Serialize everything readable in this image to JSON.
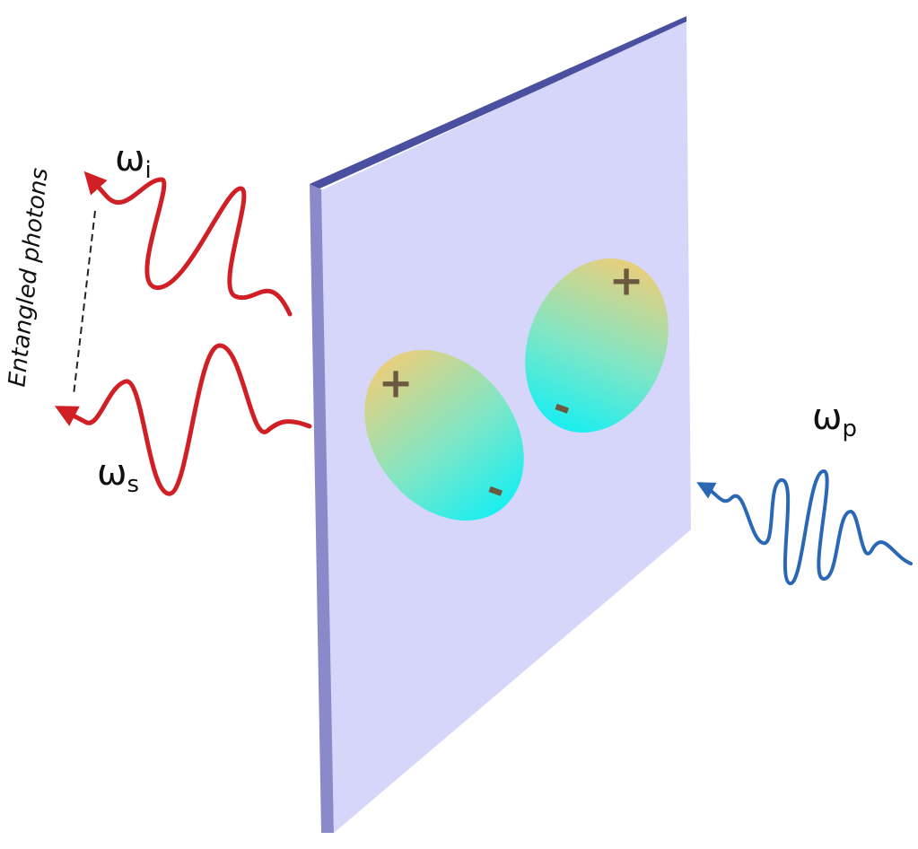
{
  "frequencies": {
    "idler": {
      "symbol": "ω",
      "subscript": "i"
    },
    "signal": {
      "symbol": "ω",
      "subscript": "s"
    },
    "pump": {
      "symbol": "ω",
      "subscript": "p"
    }
  },
  "entangled_label": "Entangled photons",
  "dipoles": [
    {
      "plus": "+",
      "minus": "-"
    },
    {
      "plus": "+",
      "minus": "-"
    }
  ]
}
